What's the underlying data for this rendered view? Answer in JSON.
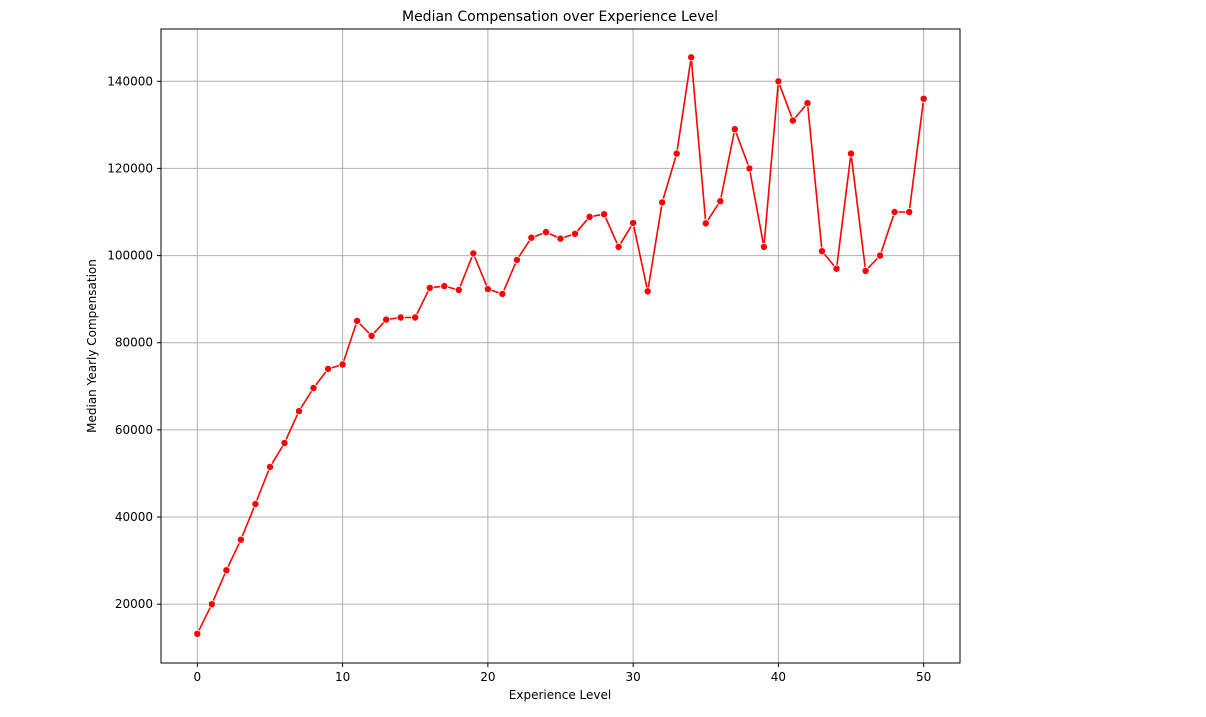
{
  "chart_data": {
    "type": "line",
    "title": "Median Compensation over Experience Level",
    "xlabel": "Experience Level",
    "ylabel": "Median Yearly Compensation",
    "xlim": [
      -2.5,
      52.5
    ],
    "ylim": [
      6500,
      152000
    ],
    "x_ticks": [
      0,
      10,
      20,
      30,
      40,
      50
    ],
    "y_ticks": [
      20000,
      40000,
      60000,
      80000,
      100000,
      120000,
      140000
    ],
    "grid": true,
    "marker": "circle",
    "colors": {
      "line": "#ff0000",
      "marker": "#ff0000",
      "marker_edge": "#ffffff"
    },
    "series": [
      {
        "x": [
          0,
          1,
          2,
          3,
          4,
          5,
          6,
          7,
          8,
          9,
          10,
          11,
          12,
          13,
          14,
          15,
          16,
          17,
          18,
          19,
          20,
          21,
          22,
          23,
          24,
          25,
          26,
          27,
          28,
          29,
          30,
          31,
          32,
          33,
          34,
          35,
          36,
          37,
          38,
          39,
          40,
          41,
          42,
          43,
          44,
          45,
          46,
          47,
          48,
          49,
          50
        ],
        "y": [
          13200,
          20000,
          27800,
          34800,
          43000,
          51500,
          57000,
          64300,
          69600,
          74000,
          75000,
          85000,
          81600,
          85300,
          85800,
          85800,
          92600,
          93000,
          92100,
          100500,
          92300,
          91200,
          99000,
          104100,
          105400,
          103900,
          105000,
          108900,
          109500,
          102000,
          107500,
          91800,
          112200,
          123400,
          145500,
          107400,
          112500,
          129000,
          120000,
          102000,
          140000,
          131000,
          135000,
          101000,
          97000,
          123400,
          96500,
          100000,
          110000,
          110000,
          136000
        ]
      }
    ]
  }
}
